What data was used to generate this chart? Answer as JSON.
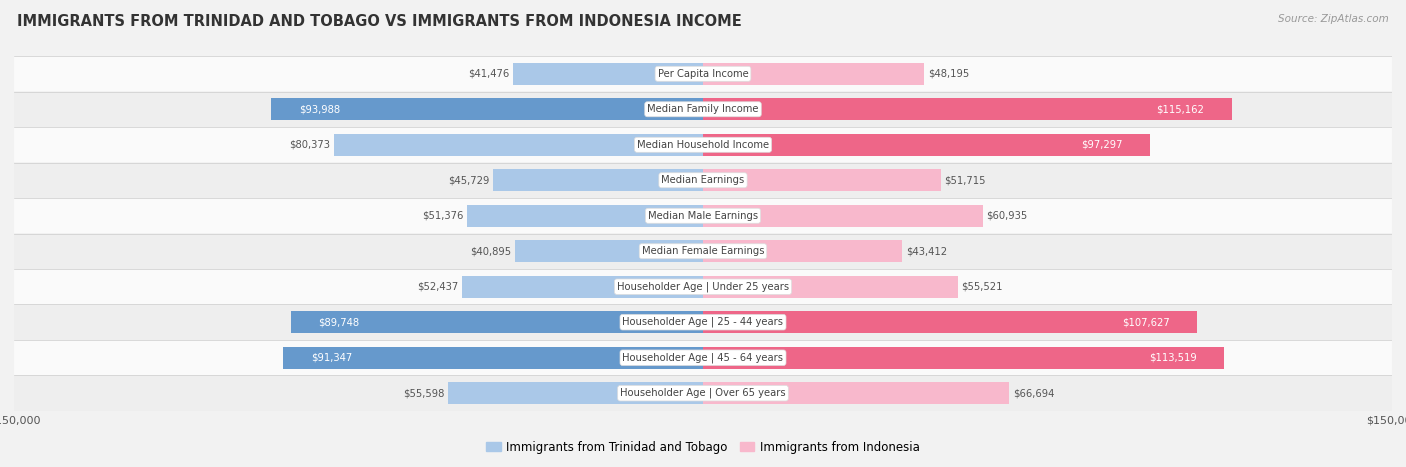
{
  "title": "IMMIGRANTS FROM TRINIDAD AND TOBAGO VS IMMIGRANTS FROM INDONESIA INCOME",
  "source": "Source: ZipAtlas.com",
  "categories": [
    "Per Capita Income",
    "Median Family Income",
    "Median Household Income",
    "Median Earnings",
    "Median Male Earnings",
    "Median Female Earnings",
    "Householder Age | Under 25 years",
    "Householder Age | 25 - 44 years",
    "Householder Age | 45 - 64 years",
    "Householder Age | Over 65 years"
  ],
  "trinidad_values": [
    41476,
    93988,
    80373,
    45729,
    51376,
    40895,
    52437,
    89748,
    91347,
    55598
  ],
  "indonesia_values": [
    48195,
    115162,
    97297,
    51715,
    60935,
    43412,
    55521,
    107627,
    113519,
    66694
  ],
  "trinidad_labels": [
    "$41,476",
    "$93,988",
    "$80,373",
    "$45,729",
    "$51,376",
    "$40,895",
    "$52,437",
    "$89,748",
    "$91,347",
    "$55,598"
  ],
  "indonesia_labels": [
    "$48,195",
    "$115,162",
    "$97,297",
    "$51,715",
    "$60,935",
    "$43,412",
    "$55,521",
    "$107,627",
    "$113,519",
    "$66,694"
  ],
  "max_value": 150000,
  "trinidad_color_light": "#aac8e8",
  "trinidad_color_dark": "#6699cc",
  "indonesia_color_light": "#f8b8cc",
  "indonesia_color_dark": "#ee6688",
  "bg_color": "#f2f2f2",
  "row_bg_light": "#fafafa",
  "row_bg_dark": "#eeeeee",
  "bar_height": 0.62,
  "legend_trinidad": "Immigrants from Trinidad and Tobago",
  "legend_indonesia": "Immigrants from Indonesia"
}
